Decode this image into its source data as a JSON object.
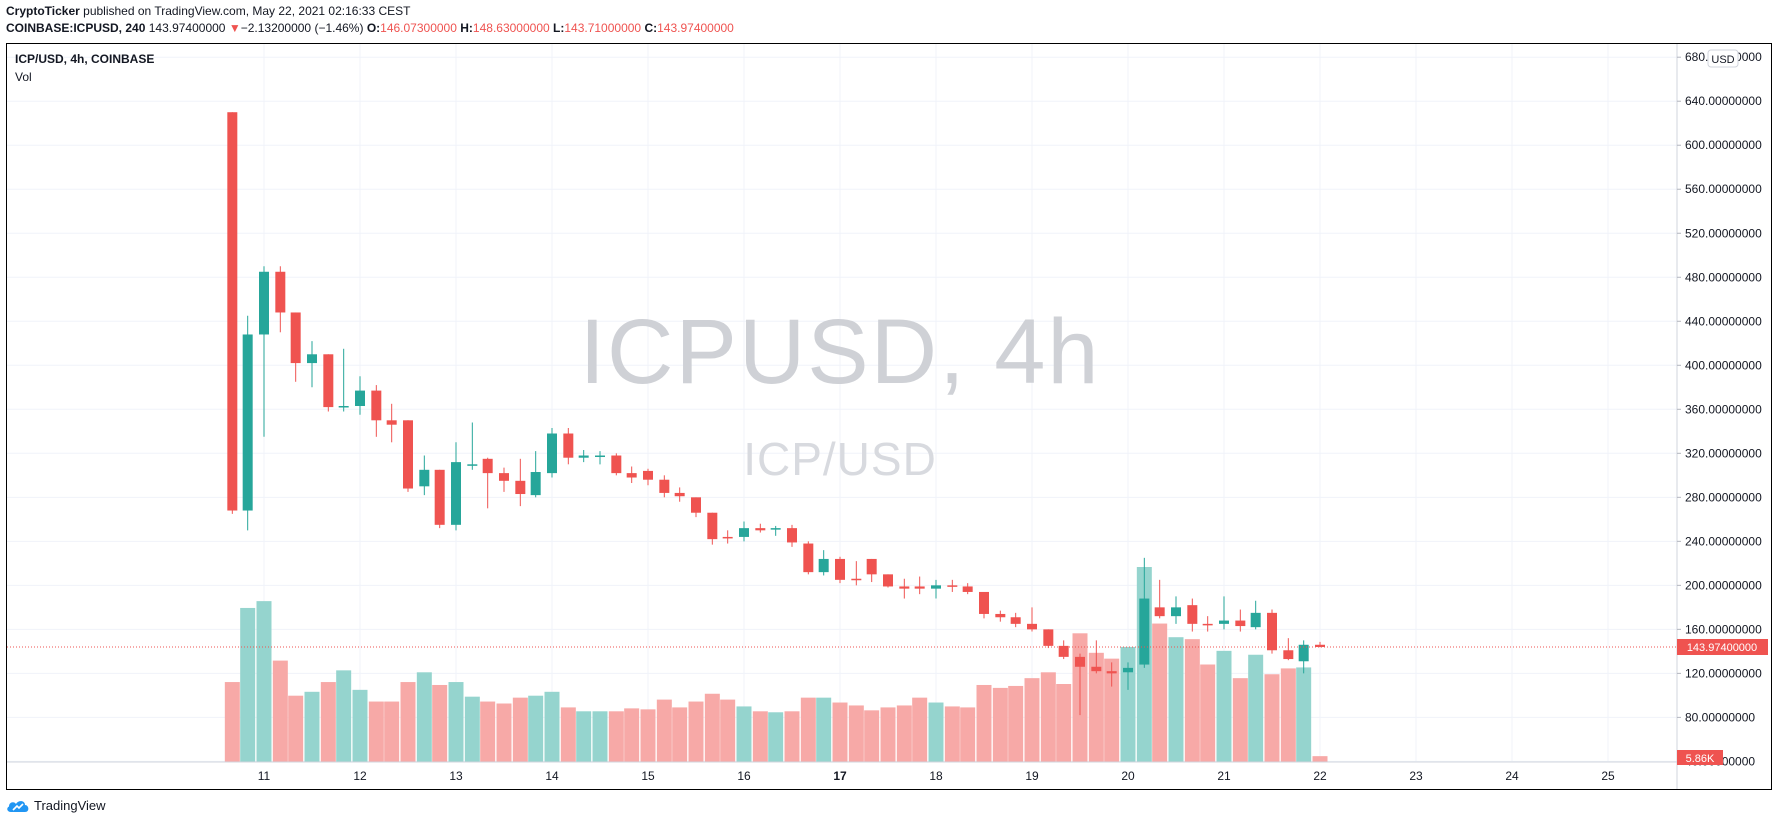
{
  "header": {
    "author": "CryptoTicker",
    "published_text": "published on TradingView.com, May 22, 2021 02:16:33 CEST",
    "symbol_line": "COINBASE:ICPUSD, 240",
    "last": "143.97400000",
    "change_arrow": "▼",
    "change": "−2.13200000 (−1.46%)",
    "o_label": "O:",
    "o_value": "146.07300000",
    "h_label": "H:",
    "h_value": "148.63000000",
    "l_label": "L:",
    "l_value": "143.71000000",
    "c_label": "C:",
    "c_value": "143.97400000"
  },
  "legend": {
    "title": "ICP/USD, 4h, COINBASE",
    "volume_label": "Vol"
  },
  "watermark": {
    "symbol": "ICPUSD, 4h",
    "description": "ICP/USD"
  },
  "price_axis": {
    "currency_badge": "USD",
    "last_price_label": "143.97400000",
    "volume_label": "5.86K"
  },
  "footer": {
    "brand": "TradingView"
  },
  "colors": {
    "up": "#26a69a",
    "down": "#ef5350",
    "vol_up": "#95d4ce",
    "vol_down": "#f7a9a7",
    "grid": "#f0f3fa"
  },
  "chart_data": {
    "type": "candlestick",
    "title": "ICP/USD, 4h, COINBASE",
    "y_ticks": [
      "680.00000000",
      "640.00000000",
      "600.00000000",
      "560.00000000",
      "520.00000000",
      "480.00000000",
      "440.00000000",
      "400.00000000",
      "360.00000000",
      "320.00000000",
      "280.00000000",
      "240.00000000",
      "200.00000000",
      "160.00000000",
      "120.00000000",
      "80.00000000",
      "40.00000000"
    ],
    "y_tick_values": [
      680,
      640,
      600,
      560,
      520,
      480,
      440,
      400,
      360,
      320,
      280,
      240,
      200,
      160,
      120,
      80,
      40
    ],
    "x_ticks": [
      {
        "label": "11",
        "day": 11,
        "bold": false
      },
      {
        "label": "12",
        "day": 12,
        "bold": false
      },
      {
        "label": "13",
        "day": 13,
        "bold": false
      },
      {
        "label": "14",
        "day": 14,
        "bold": false
      },
      {
        "label": "15",
        "day": 15,
        "bold": false
      },
      {
        "label": "16",
        "day": 16,
        "bold": false
      },
      {
        "label": "17",
        "day": 17,
        "bold": true
      },
      {
        "label": "18",
        "day": 18,
        "bold": false
      },
      {
        "label": "19",
        "day": 19,
        "bold": false
      },
      {
        "label": "20",
        "day": 20,
        "bold": false
      },
      {
        "label": "21",
        "day": 21,
        "bold": false
      },
      {
        "label": "22",
        "day": 22,
        "bold": false
      },
      {
        "label": "23",
        "day": 23,
        "bold": false
      },
      {
        "label": "24",
        "day": 24,
        "bold": false
      },
      {
        "label": "25",
        "day": 25,
        "bold": false
      }
    ],
    "ylim": [
      24,
      692
    ],
    "last_price": 143.974,
    "volume_scale_max": 400,
    "series": [
      {
        "name": "ICP/USD",
        "columns": [
          "day",
          "open",
          "high",
          "low",
          "close",
          "volume"
        ],
        "candles": [
          [
            10.67,
            630,
            630,
            265,
            268,
            82
          ],
          [
            10.83,
            268,
            445,
            250,
            428,
            158
          ],
          [
            11.0,
            428,
            490,
            335,
            485,
            165
          ],
          [
            11.17,
            485,
            490,
            430,
            448,
            104
          ],
          [
            11.33,
            448,
            448,
            385,
            402,
            68
          ],
          [
            11.5,
            402,
            422,
            380,
            410,
            72
          ],
          [
            11.67,
            410,
            410,
            358,
            362,
            82
          ],
          [
            11.83,
            362,
            415,
            358,
            363,
            94
          ],
          [
            12.0,
            363,
            390,
            355,
            377,
            74
          ],
          [
            12.17,
            377,
            382,
            335,
            350,
            62
          ],
          [
            12.33,
            350,
            365,
            330,
            346,
            62
          ],
          [
            12.5,
            350,
            350,
            285,
            288,
            82
          ],
          [
            12.67,
            290,
            318,
            282,
            305,
            92
          ],
          [
            12.83,
            305,
            305,
            252,
            255,
            79
          ],
          [
            13.0,
            255,
            330,
            250,
            312,
            82
          ],
          [
            13.17,
            310,
            348,
            305,
            310,
            67
          ],
          [
            13.33,
            315,
            316,
            270,
            302,
            62
          ],
          [
            13.5,
            302,
            307,
            285,
            295,
            60
          ],
          [
            13.67,
            295,
            315,
            272,
            283,
            66
          ],
          [
            13.83,
            282,
            322,
            280,
            303,
            68
          ],
          [
            14.0,
            302,
            343,
            298,
            338,
            72
          ],
          [
            14.17,
            338,
            343,
            310,
            316,
            56
          ],
          [
            14.33,
            316,
            323,
            312,
            318,
            52
          ],
          [
            14.5,
            318,
            322,
            310,
            318,
            52
          ],
          [
            14.67,
            318,
            320,
            300,
            302,
            52
          ],
          [
            14.83,
            302,
            308,
            293,
            298,
            55
          ],
          [
            15.0,
            304,
            306,
            291,
            296,
            54
          ],
          [
            15.17,
            296,
            300,
            280,
            284,
            64
          ],
          [
            15.33,
            284,
            289,
            276,
            281,
            56
          ],
          [
            15.5,
            280,
            280,
            262,
            266,
            62
          ],
          [
            15.67,
            266,
            266,
            237,
            242,
            70
          ],
          [
            15.83,
            244,
            250,
            238,
            243,
            64
          ],
          [
            16.0,
            244,
            258,
            240,
            252,
            57
          ],
          [
            16.17,
            252,
            256,
            248,
            250,
            52
          ],
          [
            16.33,
            252,
            254,
            245,
            252,
            51
          ],
          [
            16.5,
            252,
            255,
            235,
            239,
            52
          ],
          [
            16.67,
            238,
            240,
            210,
            212,
            66
          ],
          [
            16.83,
            212,
            232,
            209,
            224,
            66
          ],
          [
            17.0,
            224,
            226,
            202,
            205,
            61
          ],
          [
            17.17,
            206,
            222,
            200,
            205,
            58
          ],
          [
            17.33,
            224,
            224,
            203,
            210,
            53
          ],
          [
            17.5,
            210,
            210,
            198,
            199,
            56
          ],
          [
            17.67,
            199,
            206,
            188,
            197,
            58
          ],
          [
            17.83,
            199,
            208,
            192,
            197,
            66
          ],
          [
            18.0,
            197,
            205,
            188,
            200,
            61
          ],
          [
            18.17,
            200,
            205,
            194,
            199,
            57
          ],
          [
            18.33,
            199,
            202,
            192,
            194,
            56
          ],
          [
            18.5,
            194,
            194,
            170,
            174,
            79
          ],
          [
            18.67,
            174,
            177,
            167,
            171,
            76
          ],
          [
            18.83,
            171,
            175,
            162,
            165,
            78
          ],
          [
            19.0,
            165,
            180,
            158,
            160,
            86
          ],
          [
            19.17,
            160,
            160,
            143,
            145,
            92
          ],
          [
            19.33,
            145,
            150,
            133,
            135,
            80
          ],
          [
            19.5,
            135,
            138,
            82,
            126,
            132
          ],
          [
            19.67,
            126,
            150,
            120,
            122,
            112
          ],
          [
            19.83,
            122,
            130,
            108,
            120,
            106
          ],
          [
            20.0,
            121,
            130,
            105,
            125,
            118
          ],
          [
            20.17,
            128,
            225,
            125,
            188,
            200
          ],
          [
            20.33,
            180,
            205,
            170,
            172,
            142
          ],
          [
            20.5,
            172,
            190,
            165,
            180,
            128
          ],
          [
            20.67,
            182,
            188,
            158,
            165,
            126
          ],
          [
            20.83,
            165,
            172,
            158,
            164,
            100
          ],
          [
            21.0,
            165,
            190,
            160,
            168,
            114
          ],
          [
            21.17,
            168,
            178,
            158,
            163,
            86
          ],
          [
            21.33,
            162,
            186,
            160,
            175,
            110
          ],
          [
            21.5,
            175,
            178,
            138,
            141,
            90
          ],
          [
            21.67,
            141,
            152,
            132,
            133,
            96
          ],
          [
            21.83,
            131,
            150,
            120,
            146,
            97
          ],
          [
            22.0,
            146,
            148.63,
            143.71,
            143.974,
            6
          ]
        ]
      }
    ]
  }
}
